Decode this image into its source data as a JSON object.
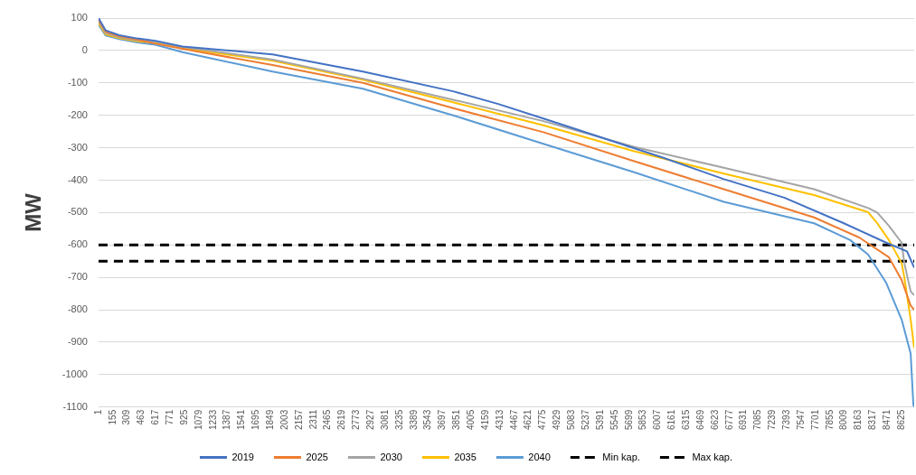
{
  "chart_data": {
    "type": "line",
    "ylabel": "MW",
    "xlim": [
      1,
      8760
    ],
    "ylim": [
      -1100,
      100
    ],
    "xticks": [
      1,
      155,
      309,
      463,
      617,
      771,
      925,
      1079,
      1233,
      1387,
      1541,
      1695,
      1849,
      2003,
      2157,
      2311,
      2465,
      2619,
      2773,
      2927,
      3081,
      3235,
      3389,
      3543,
      3697,
      3851,
      4005,
      4159,
      4313,
      4467,
      4621,
      4775,
      4929,
      5083,
      5237,
      5391,
      5545,
      5699,
      5853,
      6007,
      6161,
      6315,
      6469,
      6623,
      6777,
      6931,
      7085,
      7239,
      7393,
      7547,
      7701,
      7855,
      8009,
      8163,
      8317,
      8471,
      8625
    ],
    "yticks": [
      -1100,
      -1000,
      -900,
      -800,
      -700,
      -600,
      -500,
      -400,
      -300,
      -200,
      -100,
      0,
      100
    ],
    "grid": "y",
    "legend": "bottom",
    "marker": "none",
    "line_style": "solid",
    "series": [
      {
        "name": "2019",
        "color": "#4472c4",
        "x": [
          1,
          78,
          224,
          418,
          612,
          902,
          1871,
          2840,
          3809,
          4293,
          4778,
          5098,
          6067,
          6716,
          7365,
          8005,
          8460,
          8683,
          8760
        ],
        "values": [
          100,
          62,
          47,
          37,
          30,
          12,
          -12,
          -65,
          -126,
          -165,
          -210,
          -240,
          -331,
          -397,
          -454,
          -533,
          -593,
          -620,
          -670
        ]
      },
      {
        "name": "2025",
        "color": "#ed7d31",
        "x": [
          1,
          78,
          224,
          418,
          612,
          902,
          1871,
          2840,
          3809,
          4778,
          5746,
          6716,
          7685,
          8170,
          8489,
          8625,
          8722,
          8760
        ],
        "values": [
          95,
          58,
          44,
          34,
          21,
          5,
          -45,
          -100,
          -178,
          -252,
          -341,
          -428,
          -515,
          -577,
          -638,
          -708,
          -787,
          -800
        ]
      },
      {
        "name": "2030",
        "color": "#a5a5a5",
        "x": [
          1,
          78,
          224,
          418,
          612,
          902,
          1871,
          2840,
          3809,
          4778,
          5746,
          6716,
          7685,
          8266,
          8363,
          8489,
          8625,
          8654,
          8722,
          8760
        ],
        "values": [
          90,
          54,
          41,
          31,
          27,
          11,
          -28,
          -87,
          -152,
          -218,
          -297,
          -362,
          -428,
          -486,
          -500,
          -541,
          -593,
          -656,
          -743,
          -755
        ]
      },
      {
        "name": "2035",
        "color": "#ffc000",
        "x": [
          1,
          78,
          224,
          418,
          612,
          902,
          1871,
          2840,
          3809,
          4778,
          5746,
          6716,
          7685,
          8266,
          8363,
          8489,
          8625,
          8654,
          8722,
          8760
        ],
        "values": [
          85,
          50,
          38,
          28,
          24,
          7,
          -32,
          -90,
          -160,
          -231,
          -310,
          -380,
          -446,
          -499,
          -533,
          -585,
          -656,
          -700,
          -830,
          -918
        ]
      },
      {
        "name": "2040",
        "color": "#5b9bd5",
        "x": [
          1,
          78,
          224,
          418,
          612,
          902,
          1871,
          2840,
          3809,
          4778,
          5746,
          6716,
          7685,
          8073,
          8266,
          8460,
          8625,
          8722,
          8751,
          8760
        ],
        "values": [
          80,
          46,
          35,
          25,
          18,
          -5,
          -65,
          -118,
          -200,
          -288,
          -375,
          -467,
          -533,
          -585,
          -630,
          -717,
          -830,
          -935,
          -1092,
          -1100
        ]
      },
      {
        "name": "Min kap.",
        "color": "#000000",
        "line_style": "dashed",
        "x": [
          1,
          8760
        ],
        "values": [
          -600,
          -600
        ]
      },
      {
        "name": "Max kap.",
        "color": "#000000",
        "line_style": "dashed",
        "x": [
          1,
          8760
        ],
        "values": [
          -650,
          -650
        ]
      }
    ]
  }
}
